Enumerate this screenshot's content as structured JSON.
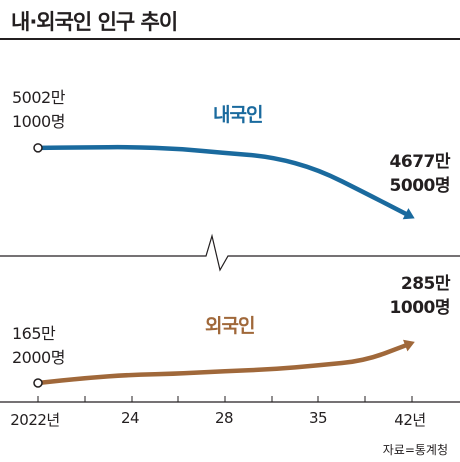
{
  "title": "내·외국인 인구 추이",
  "source": "자료=통계청",
  "chart_data": {
    "type": "line",
    "categories": [
      "2022년",
      "24",
      "28",
      "35",
      "42년"
    ],
    "x": [
      2022,
      2024,
      2026,
      2028,
      2030,
      2032,
      2035,
      2038,
      2042
    ],
    "axis_break": true,
    "series": [
      {
        "name": "내국인",
        "color": "#1a6a9e",
        "values": [
          5002.1,
          5004,
          5006,
          4998,
          4978,
          4960,
          4900,
          4790,
          4677.5
        ],
        "start_label": [
          "5002만",
          "1000명"
        ],
        "end_label": [
          "4677만",
          "5000명"
        ]
      },
      {
        "name": "외국인",
        "color": "#a0683a",
        "values": [
          165.2,
          180,
          190,
          193,
          201,
          206,
          218,
          232,
          285.1
        ],
        "start_label": [
          "165만",
          "2000명"
        ],
        "end_label": [
          "285만",
          "1000명"
        ]
      }
    ]
  },
  "icons": {
    "axis_break": "zigzag-break-icon",
    "series_end": "arrow-head-icon"
  }
}
